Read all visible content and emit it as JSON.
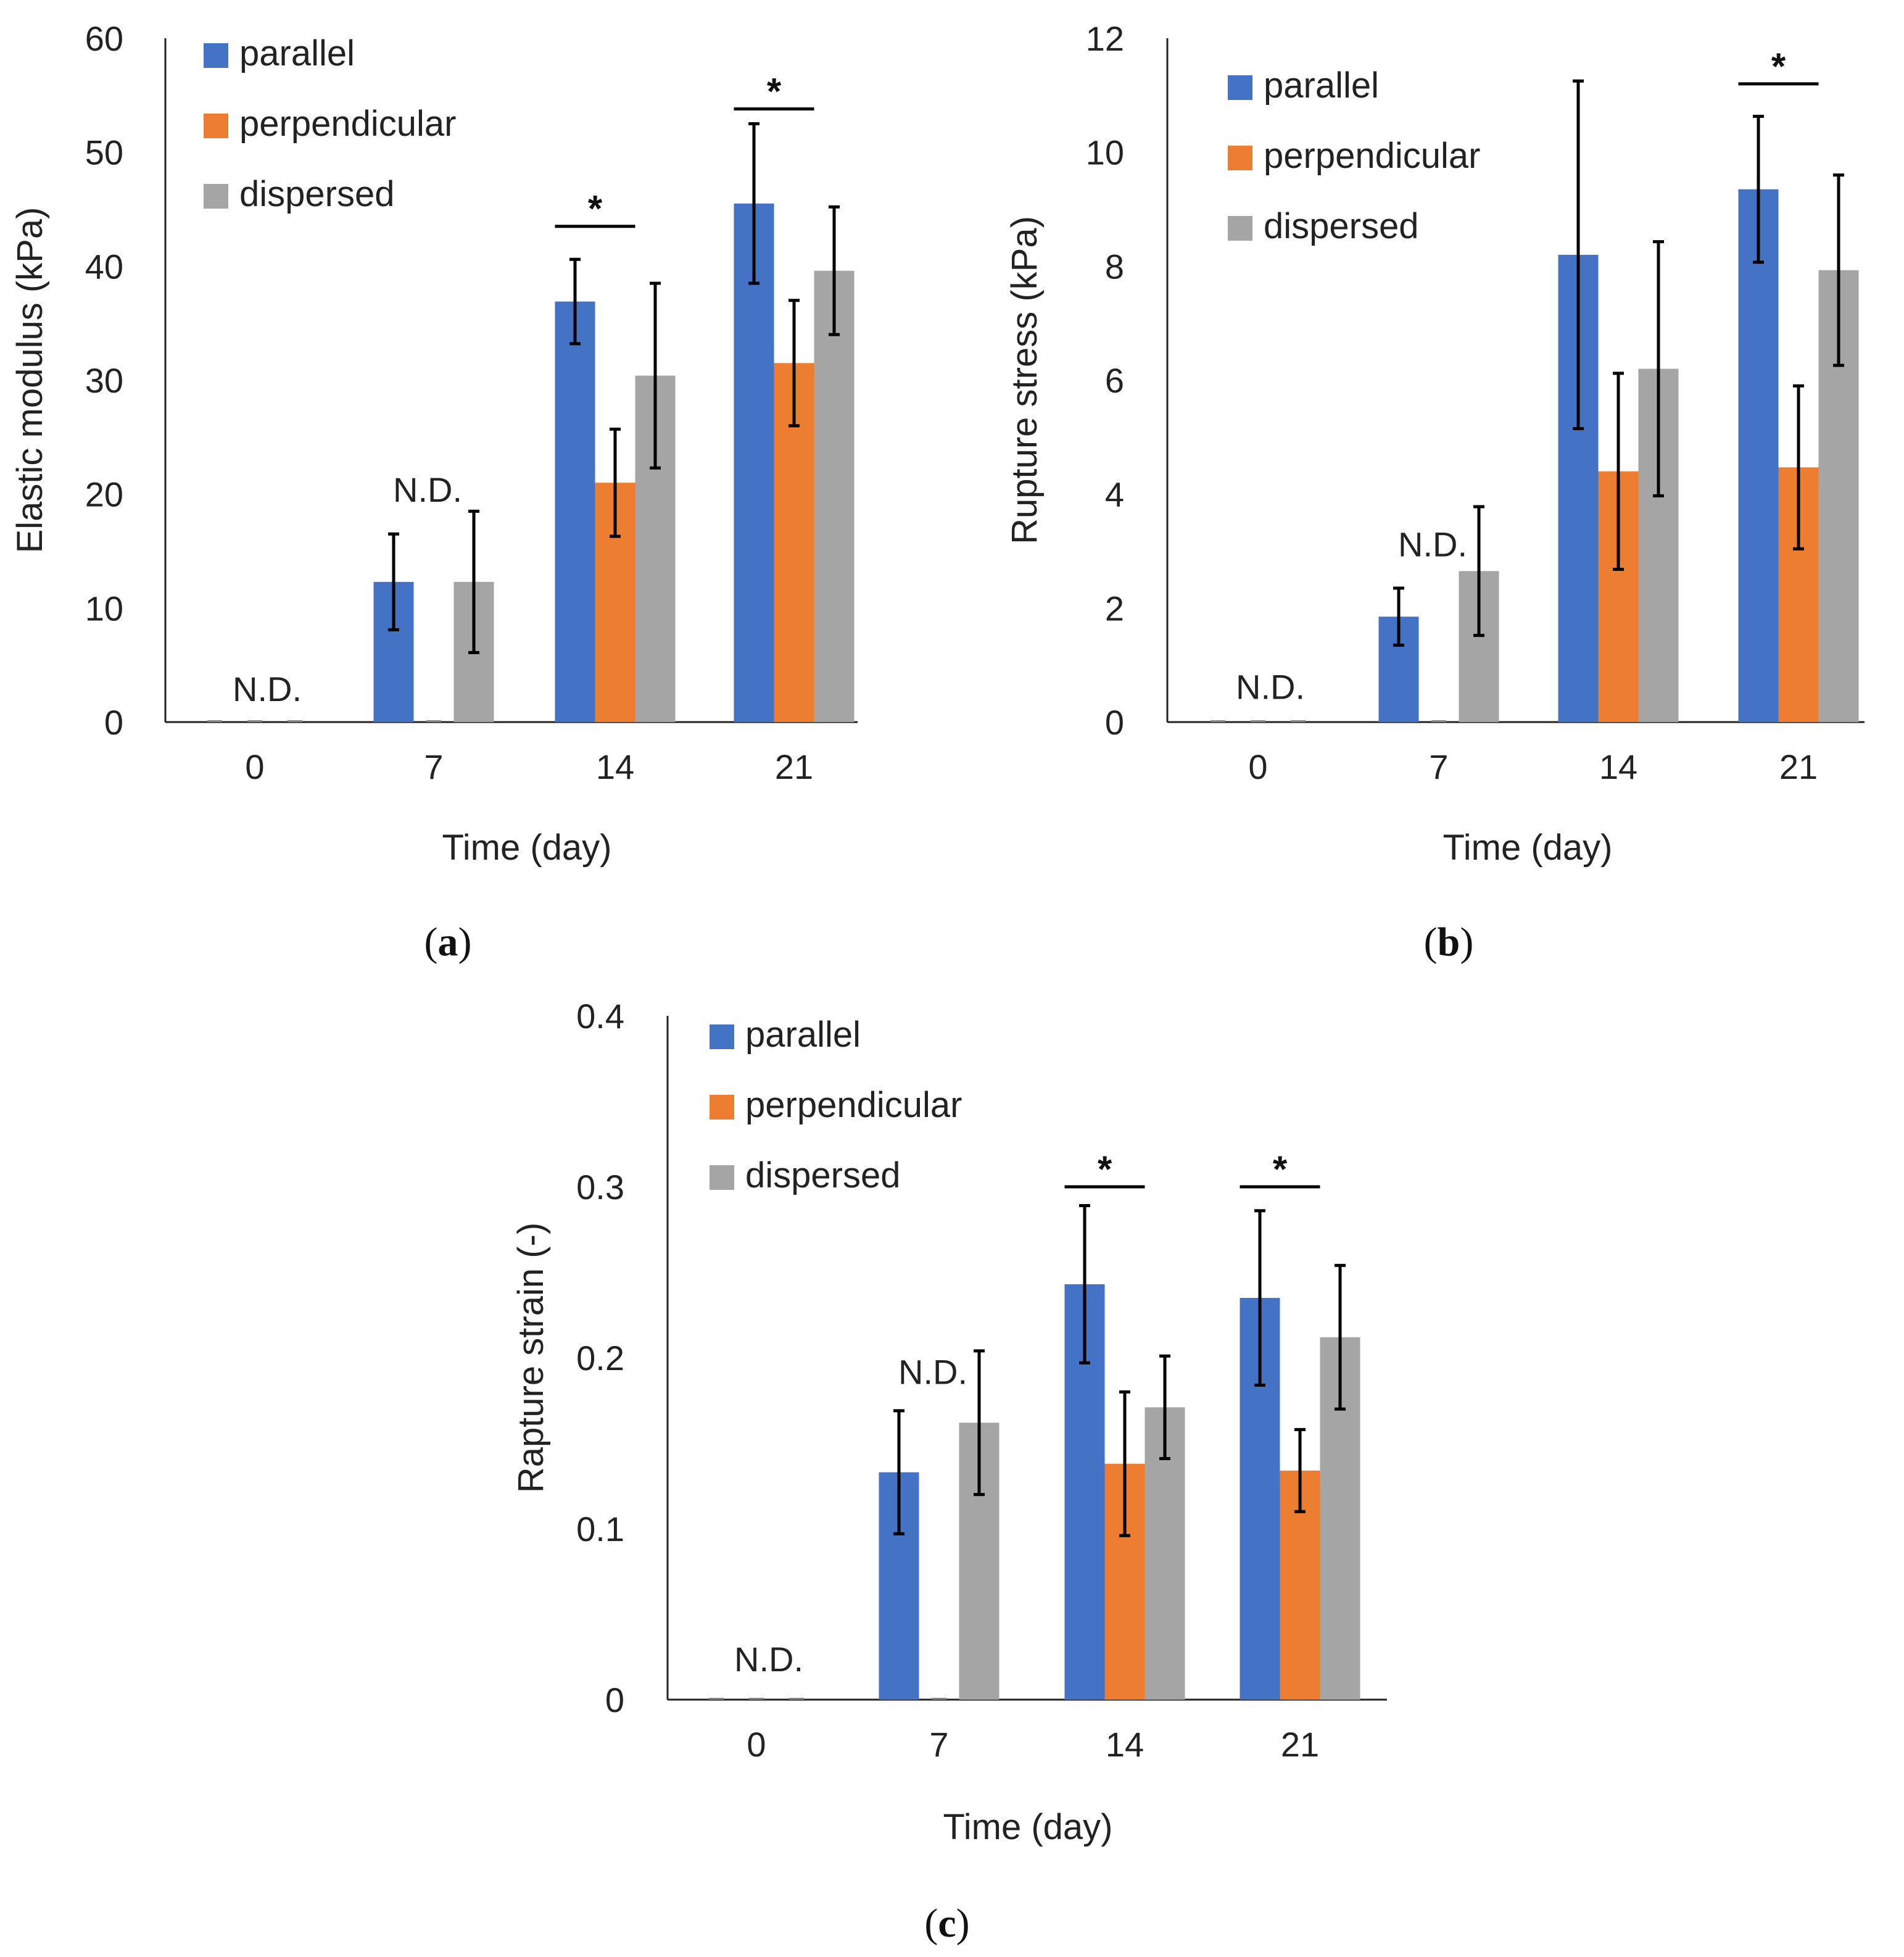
{
  "colors": {
    "parallel": "#4472c4",
    "perpendicular": "#ed7d31",
    "dispersed": "#a5a5a5"
  },
  "chart_data": [
    {
      "id": "a",
      "panel_label": "a",
      "type": "bar",
      "xlabel": "Time (day)",
      "ylabel": "Elastic modulus (kPa)",
      "ylim": [
        0,
        60
      ],
      "yticks": [
        "0",
        "10",
        "20",
        "30",
        "40",
        "50",
        "60"
      ],
      "categories": [
        "0",
        "7",
        "14",
        "21"
      ],
      "legend_position": "top-left",
      "series": [
        {
          "name": "parallel",
          "values": [
            0,
            12.3,
            36.9,
            45.5
          ],
          "errors": [
            0,
            4.2,
            3.7,
            7.0
          ]
        },
        {
          "name": "perpendicular",
          "values": [
            0,
            0,
            21.0,
            31.5
          ],
          "errors": [
            0,
            0,
            4.7,
            5.5
          ]
        },
        {
          "name": "dispersed",
          "values": [
            0,
            12.3,
            30.4,
            39.6
          ],
          "errors": [
            0,
            6.2,
            8.1,
            5.6
          ]
        }
      ],
      "annotations": [
        {
          "text": "N.D.",
          "category": 0,
          "y": 1.3
        },
        {
          "text": "N.D.",
          "category": 1,
          "y": 18.8
        }
      ],
      "significance": [
        {
          "text": "*",
          "category": 2,
          "y": 43.5
        },
        {
          "text": "*",
          "category": 3,
          "y": 53.8
        }
      ]
    },
    {
      "id": "b",
      "panel_label": "b",
      "type": "bar",
      "xlabel": "Time (day)",
      "ylabel": "Rupture stress (kPa)",
      "ylim": [
        0,
        12
      ],
      "yticks": [
        "0",
        "2",
        "4",
        "6",
        "8",
        "10",
        "12"
      ],
      "categories": [
        "0",
        "7",
        "14",
        "21"
      ],
      "legend_position": "top-left",
      "series": [
        {
          "name": "parallel",
          "values": [
            0,
            1.85,
            8.2,
            9.35
          ],
          "errors": [
            0,
            0.5,
            3.05,
            1.28
          ]
        },
        {
          "name": "perpendicular",
          "values": [
            0,
            0,
            4.4,
            4.47
          ],
          "errors": [
            0,
            0,
            1.72,
            1.43
          ]
        },
        {
          "name": "dispersed",
          "values": [
            0,
            2.65,
            6.2,
            7.93
          ],
          "errors": [
            0,
            1.13,
            2.23,
            1.67
          ]
        }
      ],
      "annotations": [
        {
          "text": "N.D.",
          "category": 0,
          "y": 0.3
        },
        {
          "text": "N.D.",
          "category": 1,
          "y": 2.8
        }
      ],
      "significance": [
        {
          "text": "*",
          "category": 3,
          "y": 11.2
        }
      ]
    },
    {
      "id": "c",
      "panel_label": "c",
      "type": "bar",
      "xlabel": "Time (day)",
      "ylabel": "Rapture strain (-)",
      "ylim": [
        0,
        0.4
      ],
      "yticks": [
        "0",
        "0.1",
        "0.2",
        "0.3",
        "0.4"
      ],
      "categories": [
        "0",
        "7",
        "14",
        "21"
      ],
      "legend_position": "top-left",
      "series": [
        {
          "name": "parallel",
          "values": [
            0,
            0.133,
            0.243,
            0.235
          ],
          "errors": [
            0,
            0.036,
            0.046,
            0.051
          ]
        },
        {
          "name": "perpendicular",
          "values": [
            0,
            0,
            0.138,
            0.134
          ],
          "errors": [
            0,
            0,
            0.042,
            0.024
          ]
        },
        {
          "name": "dispersed",
          "values": [
            0,
            0.162,
            0.171,
            0.212
          ],
          "errors": [
            0,
            0.042,
            0.03,
            0.042
          ]
        }
      ],
      "annotations": [
        {
          "text": "N.D.",
          "category": 0,
          "y": 0.013
        },
        {
          "text": "N.D.",
          "category": 1,
          "y": 0.181
        }
      ],
      "significance": [
        {
          "text": "*",
          "category": 2,
          "y": 0.3
        },
        {
          "text": "*",
          "category": 3,
          "y": 0.3
        }
      ]
    }
  ]
}
